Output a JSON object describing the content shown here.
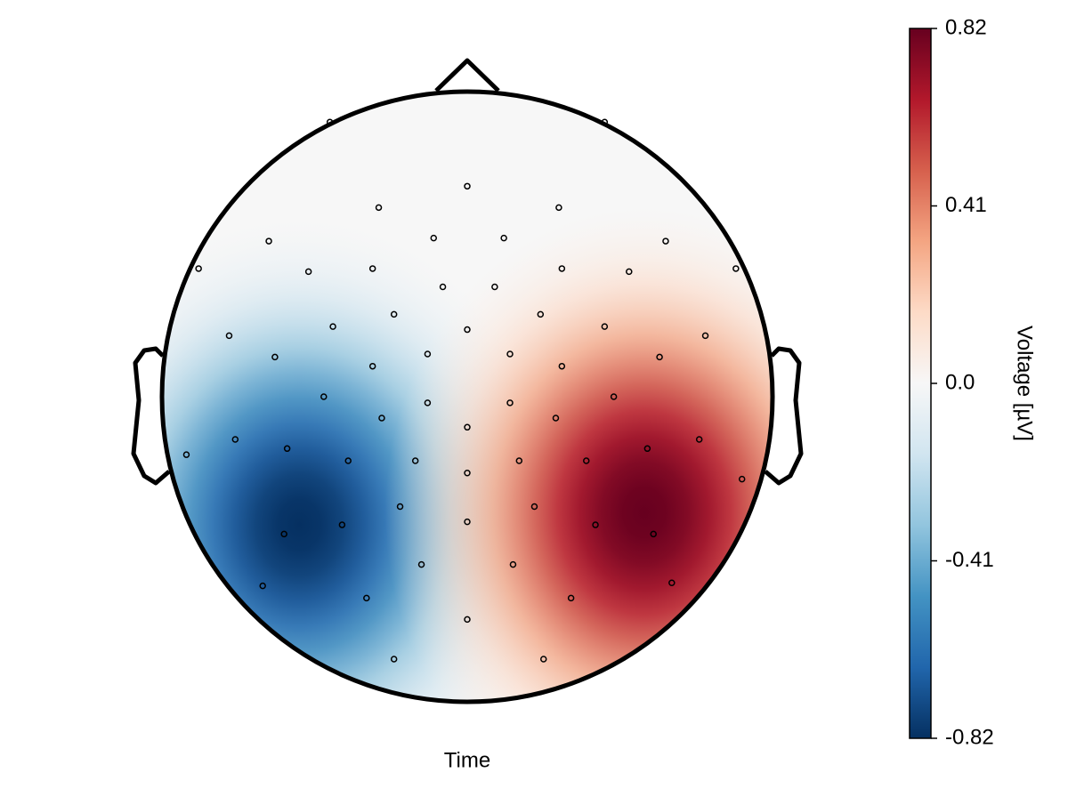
{
  "chart_data": {
    "type": "topoplot",
    "title": "Time",
    "colorbar_label": "Voltage [µV]",
    "clim": [
      -0.82,
      0.82
    ],
    "cticks": [
      -0.82,
      -0.41,
      {
        "value": 0,
        "label": "0.0"
      },
      0.41,
      0.82
    ],
    "colormap": [
      "#053061",
      "#2166ac",
      "#4393c3",
      "#92c5de",
      "#d1e5f0",
      "#f7f7f7",
      "#fddbc7",
      "#f4a582",
      "#d6604d",
      "#b2182b",
      "#67001f"
    ],
    "peaks": {
      "x": [
        -0.55,
        0.58
      ],
      "y": [
        -0.42,
        -0.38
      ],
      "values": [
        -0.82,
        0.82
      ]
    },
    "electrodes": {
      "x": [
        -0.45,
        0.45,
        0,
        -0.29,
        0.3,
        -0.65,
        -0.11,
        0.12,
        0.65,
        -0.88,
        -0.52,
        -0.31,
        0.31,
        0.53,
        0.88,
        -0.08,
        0.09,
        -0.24,
        -0.44,
        0,
        0.24,
        0.45,
        -0.78,
        0.78,
        -0.63,
        -0.31,
        -0.13,
        0.14,
        0.31,
        0.63,
        -0.47,
        -0.13,
        0.14,
        0.48,
        -0.28,
        0,
        0.29,
        -0.76,
        -0.59,
        0.76,
        0.59,
        -0.92,
        -0.39,
        -0.17,
        0.17,
        0.39,
        0,
        0.9,
        -0.22,
        0.22,
        -0.41,
        0,
        0.42,
        -0.6,
        0.61,
        -0.15,
        0.15,
        -0.67,
        -0.33,
        0.34,
        0.67,
        0,
        -0.24,
        0.25
      ],
      "y": [
        0.9,
        0.9,
        0.69,
        0.62,
        0.62,
        0.51,
        0.52,
        0.52,
        0.51,
        0.42,
        0.41,
        0.42,
        0.42,
        0.41,
        0.42,
        0.36,
        0.36,
        0.27,
        0.23,
        0.22,
        0.27,
        0.23,
        0.2,
        0.2,
        0.13,
        0.1,
        0.14,
        0.14,
        0.1,
        0.13,
        0,
        -0.02,
        -0.02,
        0,
        -0.07,
        -0.1,
        -0.07,
        -0.14,
        -0.17,
        -0.14,
        -0.17,
        -0.19,
        -0.21,
        -0.21,
        -0.21,
        -0.21,
        -0.25,
        -0.27,
        -0.36,
        -0.36,
        -0.42,
        -0.41,
        -0.42,
        -0.45,
        -0.45,
        -0.55,
        -0.55,
        -0.62,
        -0.66,
        -0.66,
        -0.61,
        -0.73,
        -0.86,
        -0.86
      ]
    }
  }
}
